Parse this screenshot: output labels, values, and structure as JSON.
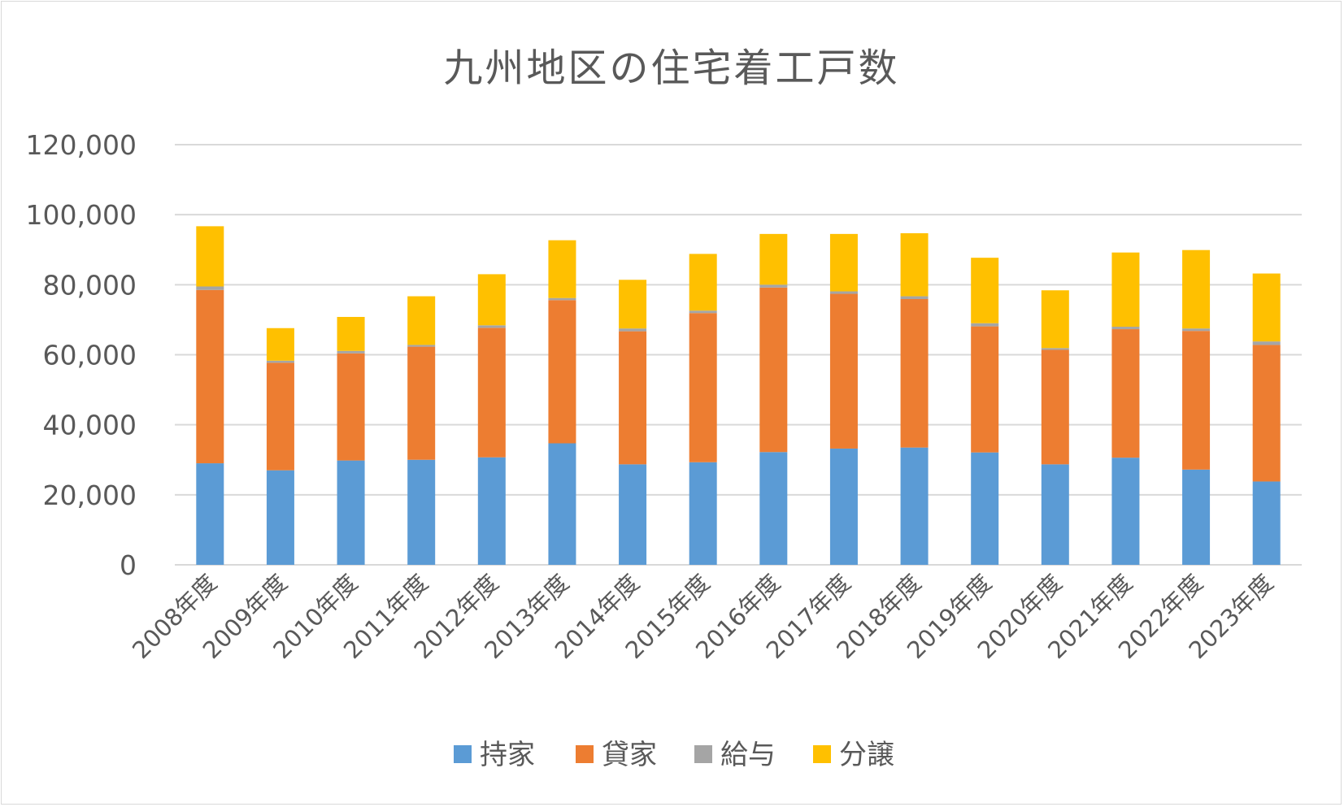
{
  "chart_data": {
    "type": "bar",
    "stacked": true,
    "title": "九州地区の住宅着工戸数",
    "xlabel": "",
    "ylabel": "",
    "ylim": [
      0,
      120000
    ],
    "yticks": [
      0,
      20000,
      40000,
      60000,
      80000,
      100000,
      120000
    ],
    "ytick_labels": [
      "0",
      "20,000",
      "40,000",
      "60,000",
      "80,000",
      "100,000",
      "120,000"
    ],
    "grid": true,
    "legend_position": "bottom",
    "categories": [
      "2008年度",
      "2009年度",
      "2010年度",
      "2011年度",
      "2012年度",
      "2013年度",
      "2014年度",
      "2015年度",
      "2016年度",
      "2017年度",
      "2018年度",
      "2019年度",
      "2020年度",
      "2021年度",
      "2022年度",
      "2023年度"
    ],
    "series": [
      {
        "name": "持家",
        "color": "#5b9bd5",
        "values": [
          29000,
          27000,
          29800,
          30000,
          30700,
          34700,
          28700,
          29300,
          32200,
          33200,
          33500,
          32100,
          28700,
          30600,
          27200,
          23800
        ]
      },
      {
        "name": "貸家",
        "color": "#ed7d31",
        "values": [
          49500,
          30700,
          30600,
          32300,
          37000,
          40900,
          38000,
          42600,
          47000,
          44200,
          42400,
          36000,
          32700,
          36700,
          39600,
          39000
        ]
      },
      {
        "name": "給与",
        "color": "#a5a5a5",
        "values": [
          1000,
          600,
          700,
          500,
          700,
          600,
          800,
          700,
          800,
          700,
          800,
          900,
          500,
          700,
          700,
          1000
        ]
      },
      {
        "name": "分譲",
        "color": "#ffc000",
        "values": [
          17200,
          9300,
          9700,
          13900,
          14600,
          16500,
          13900,
          16200,
          14500,
          16400,
          18000,
          18700,
          16500,
          21200,
          22400,
          19400
        ]
      }
    ]
  }
}
